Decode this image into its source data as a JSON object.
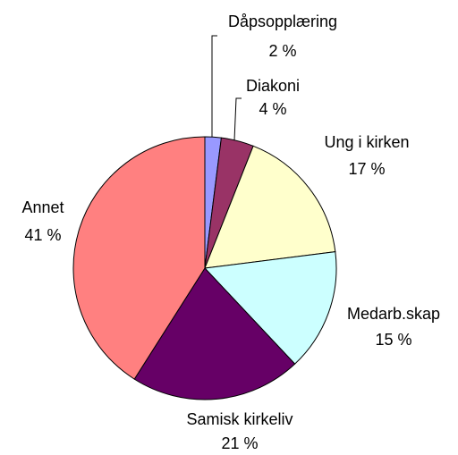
{
  "chart_data": {
    "type": "pie",
    "categories": [
      "Dåpsopplæring",
      "Diakoni",
      "Ung i kirken",
      "Medarb.skap",
      "Samisk kirkeliv",
      "Annet"
    ],
    "values": [
      2,
      4,
      17,
      15,
      21,
      41
    ],
    "value_labels": [
      "2 %",
      "4 %",
      "17 %",
      "15 %",
      "21 %",
      "41 %"
    ],
    "colors": [
      "#9999ff",
      "#993366",
      "#ffffcc",
      "#ccffff",
      "#660066",
      "#ff8080"
    ]
  }
}
